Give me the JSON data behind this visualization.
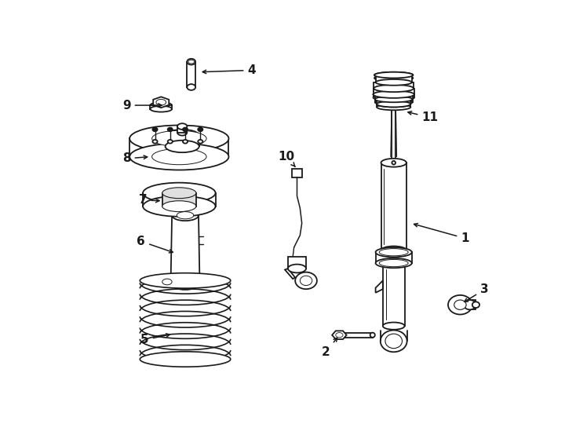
{
  "bg_color": "#ffffff",
  "line_color": "#1a1a1a",
  "lw": 1.3,
  "fig_width": 7.34,
  "fig_height": 5.4,
  "dpi": 100
}
